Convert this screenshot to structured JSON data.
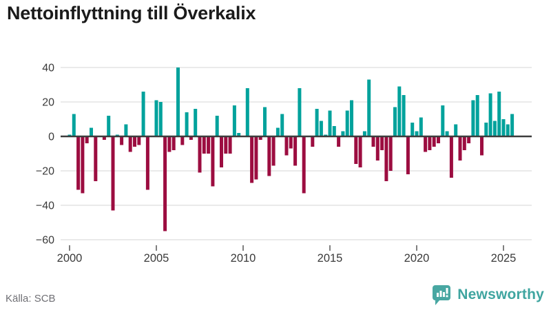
{
  "title": "Nettoinflyttning till Överkalix",
  "source": "Källa: SCB",
  "brand": {
    "name": "Newsworthy"
  },
  "colors": {
    "positive_bar": "#00a29c",
    "negative_bar": "#9c0d40",
    "gridline": "#e4e4e4",
    "zero_line": "#3d3d3d",
    "axis_text": "#3a3a3a",
    "tick_mark": "#555555",
    "title_text": "#1b1b1b",
    "source_text": "#6f6f74",
    "brand_teal": "#3fa5a0"
  },
  "chart_data": {
    "type": "bar",
    "title": "Nettoinflyttning till Överkalix",
    "xlabel": "",
    "ylabel": "",
    "x_unit": "quarter",
    "start_period": "2000 Q1",
    "end_period": "2025 Q3",
    "x_tick_years": [
      2000,
      2005,
      2010,
      2015,
      2020,
      2025
    ],
    "y_ticks": [
      40,
      20,
      0,
      -20,
      -40,
      -60
    ],
    "ylim": [
      -62,
      44
    ],
    "grid": true,
    "legend": false,
    "series": [
      {
        "name": "Nettoinflyttning",
        "values": [
          1,
          13,
          -31,
          -33,
          -4,
          5,
          -26,
          0,
          -2,
          12,
          -43,
          1,
          -5,
          7,
          -9,
          -6,
          -5,
          26,
          -31,
          0,
          21,
          20,
          -55,
          -9,
          -8,
          40,
          -5,
          14,
          -2,
          16,
          -21,
          -10,
          -10,
          -29,
          12,
          -18,
          -10,
          -10,
          18,
          2,
          0,
          28,
          -27,
          -25,
          -2,
          17,
          -23,
          -17,
          5,
          13,
          -11,
          -7,
          -17,
          28,
          -33,
          0,
          -6,
          16,
          9,
          1,
          15,
          6,
          -6,
          3,
          15,
          21,
          -16,
          -18,
          3,
          33,
          -6,
          -14,
          -8,
          -26,
          -20,
          17,
          29,
          24,
          -22,
          8,
          3,
          11,
          -9,
          -8,
          -6,
          -4,
          18,
          3,
          -24,
          7,
          -14,
          -8,
          -4,
          21,
          24,
          -11,
          8,
          25,
          9,
          26,
          10,
          7,
          13
        ]
      }
    ]
  }
}
